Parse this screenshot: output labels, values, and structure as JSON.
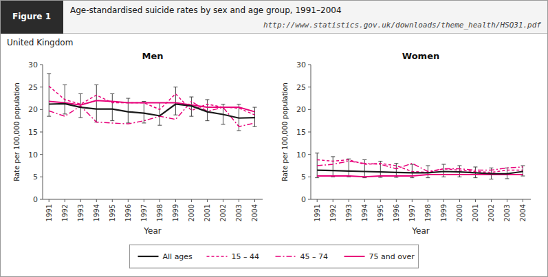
{
  "chart_data": [
    {
      "type": "line",
      "title": "Men",
      "subtitle": "United Kingdom",
      "annotations": [
        "Figure 1",
        "Age-standardised suicide rates by sex and age group, 1991–2004",
        "http://www.statistics.gov.uk/downloads/theme_health/HSQ31.pdf"
      ],
      "xlabel": "Year",
      "ylabel": "Rate per 100,000 population",
      "x": [
        1991,
        1992,
        1993,
        1994,
        1995,
        1996,
        1997,
        1998,
        1999,
        2000,
        2001,
        2002,
        2003,
        2004
      ],
      "xlim": [
        1990.6,
        2004.5
      ],
      "xticks": [
        1991,
        1992,
        1993,
        1994,
        1995,
        1996,
        1997,
        1998,
        1999,
        2000,
        2001,
        2002,
        2003,
        2004
      ],
      "ylim": [
        0,
        30
      ],
      "yticks": [
        0,
        5,
        10,
        15,
        20,
        25,
        30
      ],
      "grid": false,
      "legend": "bottom",
      "series": [
        {
          "name": "All ages",
          "color": "#1a1a1a",
          "line_style": "solid",
          "values": [
            21.2,
            21.3,
            20.5,
            20.1,
            20.1,
            19.5,
            19.2,
            18.6,
            21.2,
            20.8,
            19.5,
            18.9,
            18.1,
            18.2
          ],
          "lower": [
            18.5,
            19.0,
            18.2,
            17.2,
            17.5,
            17.0,
            17.0,
            16.5,
            18.8,
            18.5,
            17.5,
            16.7,
            15.3,
            16.2
          ],
          "upper": [
            28.0,
            25.5,
            23.5,
            25.5,
            23.5,
            22.5,
            21.8,
            21.5,
            25.0,
            22.8,
            22.2,
            21.2,
            21.2,
            20.5
          ]
        },
        {
          "name": "15 – 44",
          "color": "#e8007a",
          "line_style": "dashed",
          "values": [
            25.2,
            22.2,
            21.2,
            23.2,
            21.5,
            21.5,
            21.5,
            20.0,
            23.5,
            19.8,
            21.2,
            20.5,
            20.3,
            18.8
          ]
        },
        {
          "name": "45 – 74",
          "color": "#e8007a",
          "line_style": "dashdot",
          "values": [
            19.7,
            18.5,
            20.8,
            17.2,
            17.0,
            16.8,
            17.5,
            18.5,
            17.8,
            21.8,
            19.6,
            20.5,
            16.2,
            17.0
          ]
        },
        {
          "name": "75 and over",
          "color": "#e8007a",
          "line_style": "solid",
          "values": [
            21.8,
            21.5,
            21.0,
            22.0,
            21.8,
            21.5,
            21.5,
            21.5,
            21.5,
            21.0,
            20.5,
            20.5,
            20.5,
            19.5
          ]
        }
      ]
    },
    {
      "type": "line",
      "title": "Women",
      "xlabel": "Year",
      "ylabel": "Rate per 100,000 population",
      "x": [
        1991,
        1992,
        1993,
        1994,
        1995,
        1996,
        1997,
        1998,
        1999,
        2000,
        2001,
        2002,
        2003,
        2004
      ],
      "xlim": [
        1990.6,
        2004.5
      ],
      "xticks": [
        1991,
        1992,
        1993,
        1994,
        1995,
        1996,
        1997,
        1998,
        1999,
        2000,
        2001,
        2002,
        2003,
        2004
      ],
      "ylim": [
        0,
        30
      ],
      "yticks": [
        0,
        5,
        10,
        15,
        20,
        25,
        30
      ],
      "grid": false,
      "series": [
        {
          "name": "All ages",
          "color": "#1a1a1a",
          "line_style": "solid",
          "values": [
            6.5,
            6.4,
            6.3,
            6.2,
            6.1,
            6.0,
            5.9,
            5.9,
            6.2,
            6.1,
            5.9,
            5.7,
            5.7,
            6.2
          ],
          "lower": [
            4.8,
            5.0,
            5.0,
            4.8,
            4.9,
            4.9,
            4.8,
            4.8,
            5.0,
            5.0,
            4.8,
            4.5,
            4.6,
            5.2
          ],
          "upper": [
            10.3,
            9.5,
            9.0,
            8.8,
            8.5,
            8.0,
            7.8,
            7.5,
            7.8,
            7.5,
            7.2,
            7.0,
            7.0,
            7.5
          ]
        },
        {
          "name": "15 – 44",
          "color": "#e8007a",
          "line_style": "dashed",
          "values": [
            8.8,
            8.5,
            8.8,
            7.8,
            8.0,
            7.5,
            6.2,
            6.0,
            6.8,
            6.5,
            6.2,
            6.0,
            6.5,
            6.5
          ]
        },
        {
          "name": "45 – 74",
          "color": "#e8007a",
          "line_style": "dashdot",
          "values": [
            7.5,
            7.8,
            8.5,
            8.0,
            7.8,
            6.8,
            8.0,
            6.2,
            6.8,
            6.8,
            6.5,
            6.5,
            7.0,
            7.2
          ]
        },
        {
          "name": "75 and over",
          "color": "#e8007a",
          "line_style": "solid",
          "values": [
            5.2,
            5.2,
            5.2,
            5.0,
            5.2,
            5.2,
            5.2,
            5.5,
            5.5,
            5.5,
            5.5,
            5.5,
            5.5,
            5.5
          ]
        }
      ]
    }
  ]
}
